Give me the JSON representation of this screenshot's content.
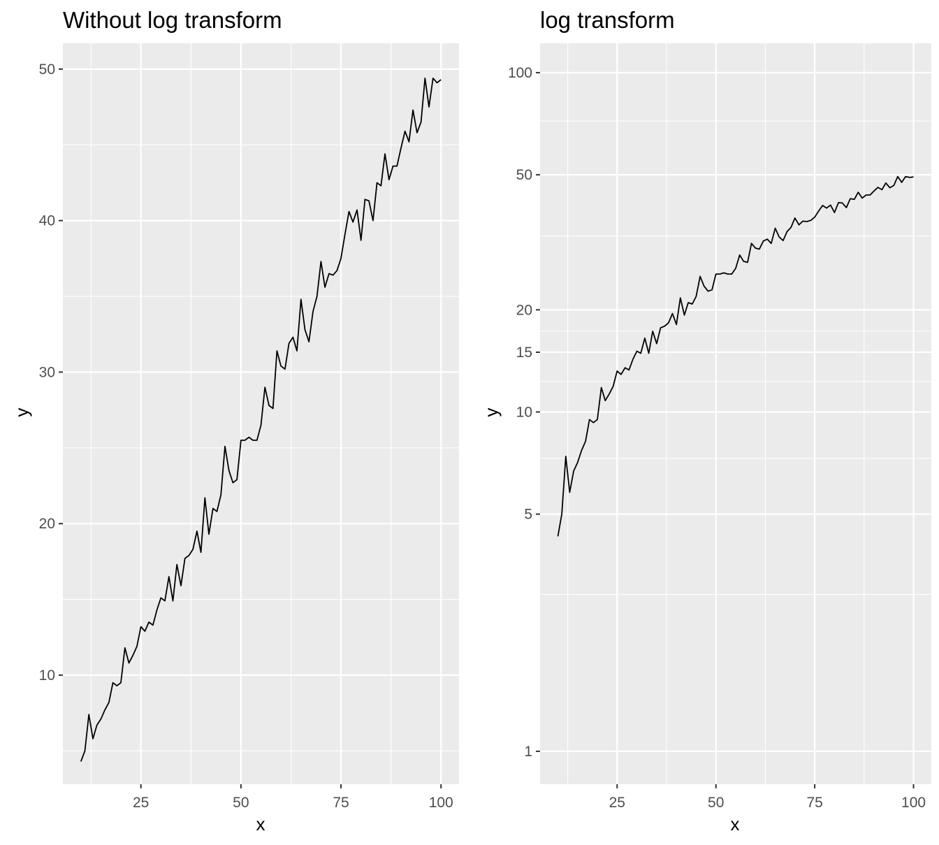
{
  "chart_data": [
    {
      "type": "line",
      "title": "Without log transform",
      "xlabel": "x",
      "ylabel": "y",
      "xlim": [
        5.5,
        104.5
      ],
      "ylim": [
        2.8,
        51.7
      ],
      "y_scale": "linear",
      "x_ticks": [
        25,
        50,
        75,
        100
      ],
      "x_tick_labels": [
        "25",
        "50",
        "75",
        "100"
      ],
      "x_minor_ticks": [
        12.5,
        37.5,
        62.5,
        87.5
      ],
      "y_ticks": [
        10,
        20,
        30,
        40,
        50
      ],
      "y_tick_labels": [
        "10",
        "20",
        "30",
        "40",
        "50"
      ],
      "y_minor_ticks": [
        5,
        15,
        25,
        35,
        45
      ],
      "grid": true,
      "legend": "none",
      "series": [
        {
          "x": [
            10,
            11,
            12,
            13,
            14,
            15,
            16,
            17,
            18,
            19,
            20,
            21,
            22,
            23,
            24,
            25,
            26,
            27,
            28,
            29,
            30,
            31,
            32,
            33,
            34,
            35,
            36,
            37,
            38,
            39,
            40,
            41,
            42,
            43,
            44,
            45,
            46,
            47,
            48,
            49,
            50,
            51,
            52,
            53,
            54,
            55,
            56,
            57,
            58,
            59,
            60,
            61,
            62,
            63,
            64,
            65,
            66,
            67,
            68,
            69,
            70,
            71,
            72,
            73,
            74,
            75,
            76,
            77,
            78,
            79,
            80,
            81,
            82,
            83,
            84,
            85,
            86,
            87,
            88,
            89,
            90,
            91,
            92,
            93,
            94,
            95,
            96,
            97,
            98,
            99,
            100
          ],
          "y": [
            4.3,
            5.0,
            7.4,
            5.8,
            6.7,
            7.1,
            7.7,
            8.2,
            9.5,
            9.3,
            9.5,
            11.8,
            10.8,
            11.3,
            11.9,
            13.2,
            12.9,
            13.5,
            13.3,
            14.3,
            15.1,
            14.9,
            16.5,
            14.9,
            17.3,
            15.9,
            17.7,
            17.9,
            18.3,
            19.5,
            18.1,
            21.7,
            19.3,
            21.0,
            20.8,
            21.9,
            25.1,
            23.5,
            22.7,
            22.9,
            25.5,
            25.5,
            25.7,
            25.5,
            25.5,
            26.5,
            29.0,
            27.8,
            27.6,
            31.4,
            30.4,
            30.2,
            31.9,
            32.3,
            31.4,
            34.8,
            32.8,
            32.0,
            34.0,
            35.0,
            37.3,
            35.6,
            36.5,
            36.4,
            36.7,
            37.5,
            39.1,
            40.6,
            39.9,
            40.7,
            38.7,
            41.4,
            41.3,
            40.0,
            42.5,
            42.3,
            44.4,
            42.7,
            43.6,
            43.6,
            44.8,
            45.9,
            45.2,
            47.3,
            45.8,
            46.5,
            49.4,
            47.5,
            49.4,
            49.1,
            49.3
          ]
        }
      ]
    },
    {
      "type": "line",
      "title": "log transform",
      "xlabel": "x",
      "ylabel": "y",
      "xlim": [
        5.5,
        104.5
      ],
      "ylim": [
        0.8,
        122
      ],
      "y_scale": "log10",
      "x_ticks": [
        25,
        50,
        75,
        100
      ],
      "x_tick_labels": [
        "25",
        "50",
        "75",
        "100"
      ],
      "x_minor_ticks": [
        12.5,
        37.5,
        62.5,
        87.5
      ],
      "y_ticks": [
        1,
        5,
        10,
        15,
        20,
        50,
        100
      ],
      "y_tick_labels": [
        "1",
        "5",
        "10",
        "15",
        "20",
        "50",
        "100"
      ],
      "y_minor_ticks": [
        2.9,
        7.3,
        12.3,
        17.3,
        33,
        72
      ],
      "grid": true,
      "legend": "none",
      "series": [
        {
          "x": [
            10,
            11,
            12,
            13,
            14,
            15,
            16,
            17,
            18,
            19,
            20,
            21,
            22,
            23,
            24,
            25,
            26,
            27,
            28,
            29,
            30,
            31,
            32,
            33,
            34,
            35,
            36,
            37,
            38,
            39,
            40,
            41,
            42,
            43,
            44,
            45,
            46,
            47,
            48,
            49,
            50,
            51,
            52,
            53,
            54,
            55,
            56,
            57,
            58,
            59,
            60,
            61,
            62,
            63,
            64,
            65,
            66,
            67,
            68,
            69,
            70,
            71,
            72,
            73,
            74,
            75,
            76,
            77,
            78,
            79,
            80,
            81,
            82,
            83,
            84,
            85,
            86,
            87,
            88,
            89,
            90,
            91,
            92,
            93,
            94,
            95,
            96,
            97,
            98,
            99,
            100
          ],
          "y": [
            4.3,
            5.0,
            7.4,
            5.8,
            6.7,
            7.1,
            7.7,
            8.2,
            9.5,
            9.3,
            9.5,
            11.8,
            10.8,
            11.3,
            11.9,
            13.2,
            12.9,
            13.5,
            13.3,
            14.3,
            15.1,
            14.9,
            16.5,
            14.9,
            17.3,
            15.9,
            17.7,
            17.9,
            18.3,
            19.5,
            18.1,
            21.7,
            19.3,
            21.0,
            20.8,
            21.9,
            25.1,
            23.5,
            22.7,
            22.9,
            25.5,
            25.5,
            25.7,
            25.5,
            25.5,
            26.5,
            29.0,
            27.8,
            27.6,
            31.4,
            30.4,
            30.2,
            31.9,
            32.3,
            31.4,
            34.8,
            32.8,
            32.0,
            34.0,
            35.0,
            37.3,
            35.6,
            36.5,
            36.4,
            36.7,
            37.5,
            39.1,
            40.6,
            39.9,
            40.7,
            38.7,
            41.4,
            41.3,
            40.0,
            42.5,
            42.3,
            44.4,
            42.7,
            43.6,
            43.6,
            44.8,
            45.9,
            45.2,
            47.3,
            45.8,
            46.5,
            49.4,
            47.5,
            49.4,
            49.1,
            49.3
          ]
        }
      ]
    }
  ]
}
